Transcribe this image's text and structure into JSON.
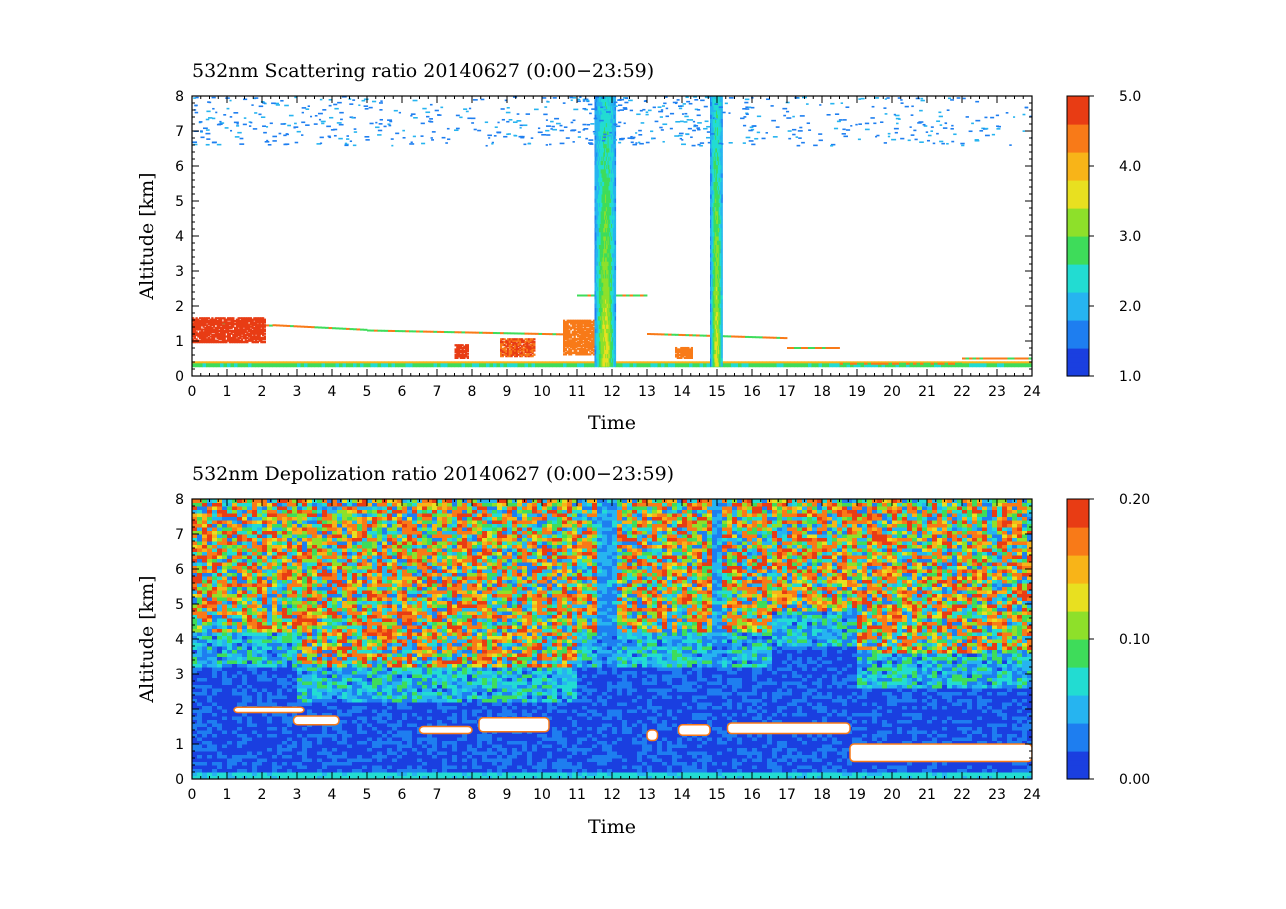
{
  "chart_data": [
    {
      "type": "heatmap",
      "title": "532nm Scattering ratio   20140627  (0:00−23:59)",
      "xlabel": "Time",
      "ylabel": "Altitude [km]",
      "x_ticks": [
        "0",
        "1",
        "2",
        "3",
        "4",
        "5",
        "6",
        "7",
        "8",
        "9",
        "10",
        "11",
        "12",
        "13",
        "14",
        "15",
        "16",
        "17",
        "18",
        "19",
        "20",
        "21",
        "22",
        "23",
        "24"
      ],
      "y_ticks": [
        "0",
        "1",
        "2",
        "3",
        "4",
        "5",
        "6",
        "7",
        "8"
      ],
      "xlim": [
        0,
        24
      ],
      "ylim": [
        0,
        8
      ],
      "colorbar": {
        "range": [
          1.0,
          5.0
        ],
        "tick_values": [
          1.0,
          2.0,
          3.0,
          4.0,
          5.0
        ],
        "tick_labels": [
          "1.0",
          "2.0",
          "3.0",
          "4.0",
          "5.0"
        ]
      },
      "features": [
        {
          "kind": "boundary_layer",
          "description": "aerosol layer top near 0.3–1.5 km with values 1.5–5"
        },
        {
          "kind": "cloud_column",
          "t_start": 11.5,
          "t_end": 12.1,
          "alt_top": 8
        },
        {
          "kind": "cloud_column",
          "t_start": 14.8,
          "t_end": 15.15,
          "alt_top": 8
        }
      ]
    },
    {
      "type": "heatmap",
      "title": "532nm Depolization ratio   20140627  (0:00−23:59)",
      "xlabel": "Time",
      "ylabel": "Altitude [km]",
      "x_ticks": [
        "0",
        "1",
        "2",
        "3",
        "4",
        "5",
        "6",
        "7",
        "8",
        "9",
        "10",
        "11",
        "12",
        "13",
        "14",
        "15",
        "16",
        "17",
        "18",
        "19",
        "20",
        "21",
        "22",
        "23",
        "24"
      ],
      "y_ticks": [
        "0",
        "1",
        "2",
        "3",
        "4",
        "5",
        "6",
        "7",
        "8"
      ],
      "xlim": [
        0,
        24
      ],
      "ylim": [
        0,
        8
      ],
      "colorbar": {
        "range": [
          0.0,
          0.2
        ],
        "tick_values": [
          0.0,
          0.1,
          0.2
        ],
        "tick_labels": [
          "0.00",
          "0.10",
          "0.20"
        ]
      }
    }
  ],
  "colormap": [
    "#1a3fe0",
    "#1e7ef0",
    "#26b4f0",
    "#22dcd2",
    "#3edc5a",
    "#8ee02a",
    "#e8e020",
    "#f8b418",
    "#f87a18",
    "#e83c14"
  ]
}
